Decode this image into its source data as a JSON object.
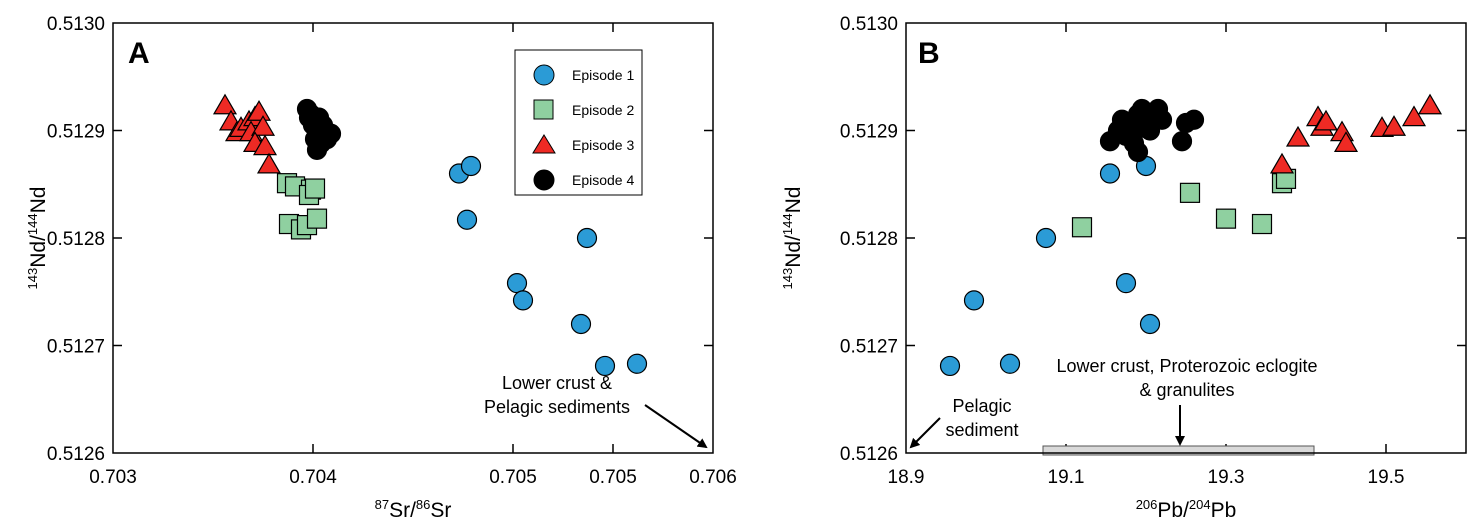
{
  "colors": {
    "episode_1": "#2b9bd6",
    "episode_2": "#8fd0a0",
    "episode_3": "#ee2a24",
    "episode_4": "#000000",
    "range_bar": "#d9d9d9"
  },
  "chart_data": [
    {
      "type": "scatter",
      "panel_label": "A",
      "xlabel": {
        "sup1": "87",
        "base1": "Sr/",
        "sup2": "86",
        "base2": "Sr"
      },
      "ylabel": {
        "sup1": "143",
        "base1": "Nd/",
        "sup2": "144",
        "base2": "Nd"
      },
      "xlim": [
        0.703,
        0.706
      ],
      "ylim": [
        0.5126,
        0.513
      ],
      "x_ticks": [
        "0.703",
        "0.704",
        "0.705",
        "0.705",
        "0.706"
      ],
      "y_ticks": [
        "0.5126",
        "0.5127",
        "0.5128",
        "0.5129",
        "0.5130"
      ],
      "legend_position": "top-right",
      "series": [
        {
          "name": "Episode 1",
          "marker": "circle",
          "points": [
            [
              0.70473,
              0.51286
            ],
            [
              0.70479,
              0.512867
            ],
            [
              0.70477,
              0.512817
            ],
            [
              0.70537,
              0.5128
            ],
            [
              0.70502,
              0.512758
            ],
            [
              0.70505,
              0.512742
            ],
            [
              0.70534,
              0.51272
            ],
            [
              0.70546,
              0.512681
            ],
            [
              0.70562,
              0.512683
            ]
          ]
        },
        {
          "name": "Episode 2",
          "marker": "square",
          "points": [
            [
              0.70387,
              0.512851
            ],
            [
              0.70391,
              0.512848
            ],
            [
              0.70399,
              0.512845
            ],
            [
              0.70398,
              0.51284
            ],
            [
              0.70401,
              0.512846
            ],
            [
              0.70388,
              0.512813
            ],
            [
              0.70394,
              0.512808
            ],
            [
              0.70397,
              0.512812
            ],
            [
              0.70402,
              0.512818
            ]
          ]
        },
        {
          "name": "Episode 3",
          "marker": "triangle",
          "points": [
            [
              0.70356,
              0.512923
            ],
            [
              0.70359,
              0.512908
            ],
            [
              0.70362,
              0.512898
            ],
            [
              0.70364,
              0.512902
            ],
            [
              0.70368,
              0.512908
            ],
            [
              0.70371,
              0.512912
            ],
            [
              0.70369,
              0.512898
            ],
            [
              0.70373,
              0.512917
            ],
            [
              0.70375,
              0.512903
            ],
            [
              0.70371,
              0.512888
            ],
            [
              0.70376,
              0.512885
            ],
            [
              0.70378,
              0.512868
            ]
          ]
        },
        {
          "name": "Episode 4",
          "marker": "circle",
          "points": [
            [
              0.70397,
              0.51292
            ],
            [
              0.70399,
              0.512915
            ],
            [
              0.70398,
              0.512912
            ],
            [
              0.704,
              0.512905
            ],
            [
              0.70403,
              0.512898
            ],
            [
              0.70401,
              0.512892
            ],
            [
              0.70404,
              0.512888
            ],
            [
              0.70402,
              0.512882
            ],
            [
              0.70405,
              0.512905
            ],
            [
              0.70407,
              0.512892
            ],
            [
              0.70409,
              0.512897
            ],
            [
              0.70403,
              0.512912
            ]
          ]
        }
      ],
      "annotations": [
        {
          "lines": [
            "Lower crust &",
            "Pelagic sediments"
          ]
        }
      ]
    },
    {
      "type": "scatter",
      "panel_label": "B",
      "xlabel": {
        "sup1": "206",
        "base1": "Pb/",
        "sup2": "204",
        "base2": "Pb"
      },
      "ylabel": {
        "sup1": "143",
        "base1": "Nd/",
        "sup2": "144",
        "base2": "Nd"
      },
      "xlim": [
        18.9,
        19.6
      ],
      "ylim": [
        0.5126,
        0.513
      ],
      "x_ticks": [
        "18.9",
        "19.1",
        "19.3",
        "19.5"
      ],
      "y_ticks": [
        "0.5126",
        "0.5127",
        "0.5128",
        "0.5129",
        "0.5130"
      ],
      "series": [
        {
          "name": "Episode 1",
          "marker": "circle",
          "points": [
            [
              18.955,
              0.512681
            ],
            [
              18.985,
              0.512742
            ],
            [
              19.03,
              0.512683
            ],
            [
              19.075,
              0.5128
            ],
            [
              19.155,
              0.51286
            ],
            [
              19.2,
              0.512867
            ],
            [
              19.175,
              0.512758
            ],
            [
              19.205,
              0.51272
            ]
          ]
        },
        {
          "name": "Episode 2",
          "marker": "square",
          "points": [
            [
              19.12,
              0.51281
            ],
            [
              19.255,
              0.512842
            ],
            [
              19.3,
              0.512818
            ],
            [
              19.345,
              0.512813
            ],
            [
              19.37,
              0.512851
            ],
            [
              19.375,
              0.512855
            ]
          ]
        },
        {
          "name": "Episode 3",
          "marker": "triangle",
          "points": [
            [
              19.37,
              0.512868
            ],
            [
              19.39,
              0.512893
            ],
            [
              19.415,
              0.512912
            ],
            [
              19.42,
              0.512903
            ],
            [
              19.425,
              0.512908
            ],
            [
              19.445,
              0.512898
            ],
            [
              19.45,
              0.512888
            ],
            [
              19.495,
              0.512902
            ],
            [
              19.51,
              0.512903
            ],
            [
              19.535,
              0.512912
            ],
            [
              19.555,
              0.512923
            ]
          ]
        },
        {
          "name": "Episode 4",
          "marker": "circle",
          "points": [
            [
              19.155,
              0.51289
            ],
            [
              19.165,
              0.5129
            ],
            [
              19.17,
              0.51291
            ],
            [
              19.175,
              0.512895
            ],
            [
              19.18,
              0.512905
            ],
            [
              19.185,
              0.512888
            ],
            [
              19.19,
              0.512915
            ],
            [
              19.195,
              0.51292
            ],
            [
              19.2,
              0.51291
            ],
            [
              19.205,
              0.5129
            ],
            [
              19.21,
              0.512915
            ],
            [
              19.215,
              0.51292
            ],
            [
              19.22,
              0.51291
            ],
            [
              19.19,
              0.51288
            ],
            [
              19.245,
              0.51289
            ],
            [
              19.25,
              0.512907
            ],
            [
              19.26,
              0.51291
            ],
            [
              19.2,
              0.512905
            ],
            [
              19.185,
              0.512898
            ]
          ]
        }
      ],
      "range_bar": {
        "x": [
          19.1,
          19.4
        ]
      },
      "annotations": [
        {
          "lines": [
            "Lower crust, Proterozoic eclogite",
            "& granulites"
          ]
        },
        {
          "lines": [
            "Pelagic",
            "sediment"
          ]
        }
      ]
    }
  ]
}
